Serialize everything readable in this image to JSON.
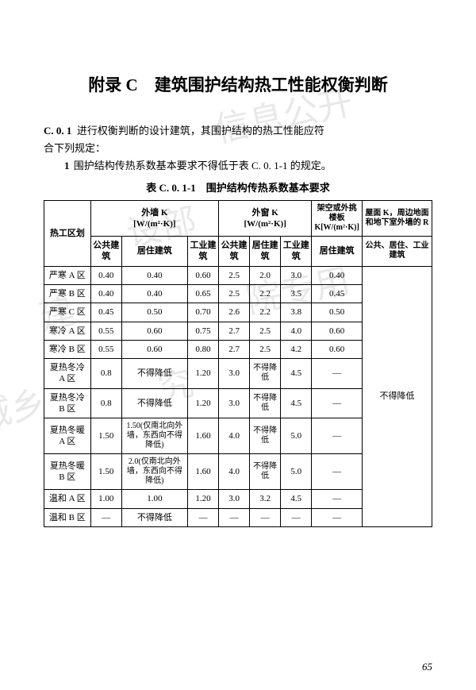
{
  "title": "附录 C　建筑围护结构热工性能权衡判断",
  "section": "C. 0. 1",
  "para1_a": "进行权衡判断的设计建筑，其围护结构的热工性能应符",
  "para1_b": "合下列规定：",
  "rule_num": "1",
  "rule_text": "围护结构传热系数基本要求不得低于表 C. 0. 1-1 的规定。",
  "table_caption": "表 C. 0. 1-1　围护结构传热系数基本要求",
  "headers": {
    "zone": "热工区划",
    "wall": "外墙 K",
    "wall_unit": "[W/(m²·K)]",
    "window": "外窗 K",
    "window_unit": "[W/(m²·K)]",
    "overhang": "架空或外挑楼板 K[W/(m²·K)]",
    "roof": "屋面 K，周边地面和地下室外墙的 R",
    "public": "公共建筑",
    "resi": "居住建筑",
    "indus": "工业建筑",
    "resi_only": "居住建筑",
    "all": "公共、居住、工业建筑"
  },
  "rows": [
    {
      "zone": "严寒 A 区",
      "w_pub": "0.40",
      "w_resi": "0.40",
      "w_ind": "0.60",
      "wi_pub": "2.5",
      "wi_resi": "2.0",
      "wi_ind": "3.0",
      "ov": "0.40"
    },
    {
      "zone": "严寒 B 区",
      "w_pub": "0.40",
      "w_resi": "0.40",
      "w_ind": "0.65",
      "wi_pub": "2.5",
      "wi_resi": "2.2",
      "wi_ind": "3.5",
      "ov": "0.45"
    },
    {
      "zone": "严寒 C 区",
      "w_pub": "0.45",
      "w_resi": "0.50",
      "w_ind": "0.70",
      "wi_pub": "2.6",
      "wi_resi": "2.2",
      "wi_ind": "3.8",
      "ov": "0.50"
    },
    {
      "zone": "寒冷 A 区",
      "w_pub": "0.55",
      "w_resi": "0.60",
      "w_ind": "0.75",
      "wi_pub": "2.7",
      "wi_resi": "2.5",
      "wi_ind": "4.0",
      "ov": "0.60"
    },
    {
      "zone": "寒冷 B 区",
      "w_pub": "0.55",
      "w_resi": "0.60",
      "w_ind": "0.80",
      "wi_pub": "2.7",
      "wi_resi": "2.5",
      "wi_ind": "4.2",
      "ov": "0.60"
    },
    {
      "zone": "夏热冬冷 A 区",
      "w_pub": "0.8",
      "w_resi": "不得降低",
      "w_ind": "1.20",
      "wi_pub": "3.0",
      "wi_resi": "不得降低",
      "wi_ind": "4.5",
      "ov": "—"
    },
    {
      "zone": "夏热冬冷 B 区",
      "w_pub": "0.8",
      "w_resi": "不得降低",
      "w_ind": "1.20",
      "wi_pub": "3.0",
      "wi_resi": "不得降低",
      "wi_ind": "4.5",
      "ov": "—"
    },
    {
      "zone": "夏热冬暖 A 区",
      "w_pub": "1.50",
      "w_resi": "1.50(仅南北向外墙，东西向不得降低)",
      "w_ind": "1.60",
      "wi_pub": "4.0",
      "wi_resi": "不得降低",
      "wi_ind": "5.0",
      "ov": "—"
    },
    {
      "zone": "夏热冬暖 B 区",
      "w_pub": "1.50",
      "w_resi": "2.0(仅南北向外墙，东西向不得降低)",
      "w_ind": "1.60",
      "wi_pub": "4.0",
      "wi_resi": "不得降低",
      "wi_ind": "5.0",
      "ov": "—"
    },
    {
      "zone": "温和 A 区",
      "w_pub": "1.00",
      "w_resi": "1.00",
      "w_ind": "1.20",
      "wi_pub": "3.0",
      "wi_resi": "3.2",
      "wi_ind": "4.5",
      "ov": "—"
    },
    {
      "zone": "温和 B 区",
      "w_pub": "—",
      "w_resi": "不得降低",
      "w_ind": "—",
      "wi_pub": "—",
      "wi_resi": "—",
      "wi_ind": "—",
      "ov": "—"
    }
  ],
  "roof_span": "不得降低",
  "page_num": "65",
  "watermark": {
    "a": "信息公开",
    "b": "设部",
    "c": "建",
    "d": "城乡",
    "e": "院专用",
    "f": "究"
  }
}
